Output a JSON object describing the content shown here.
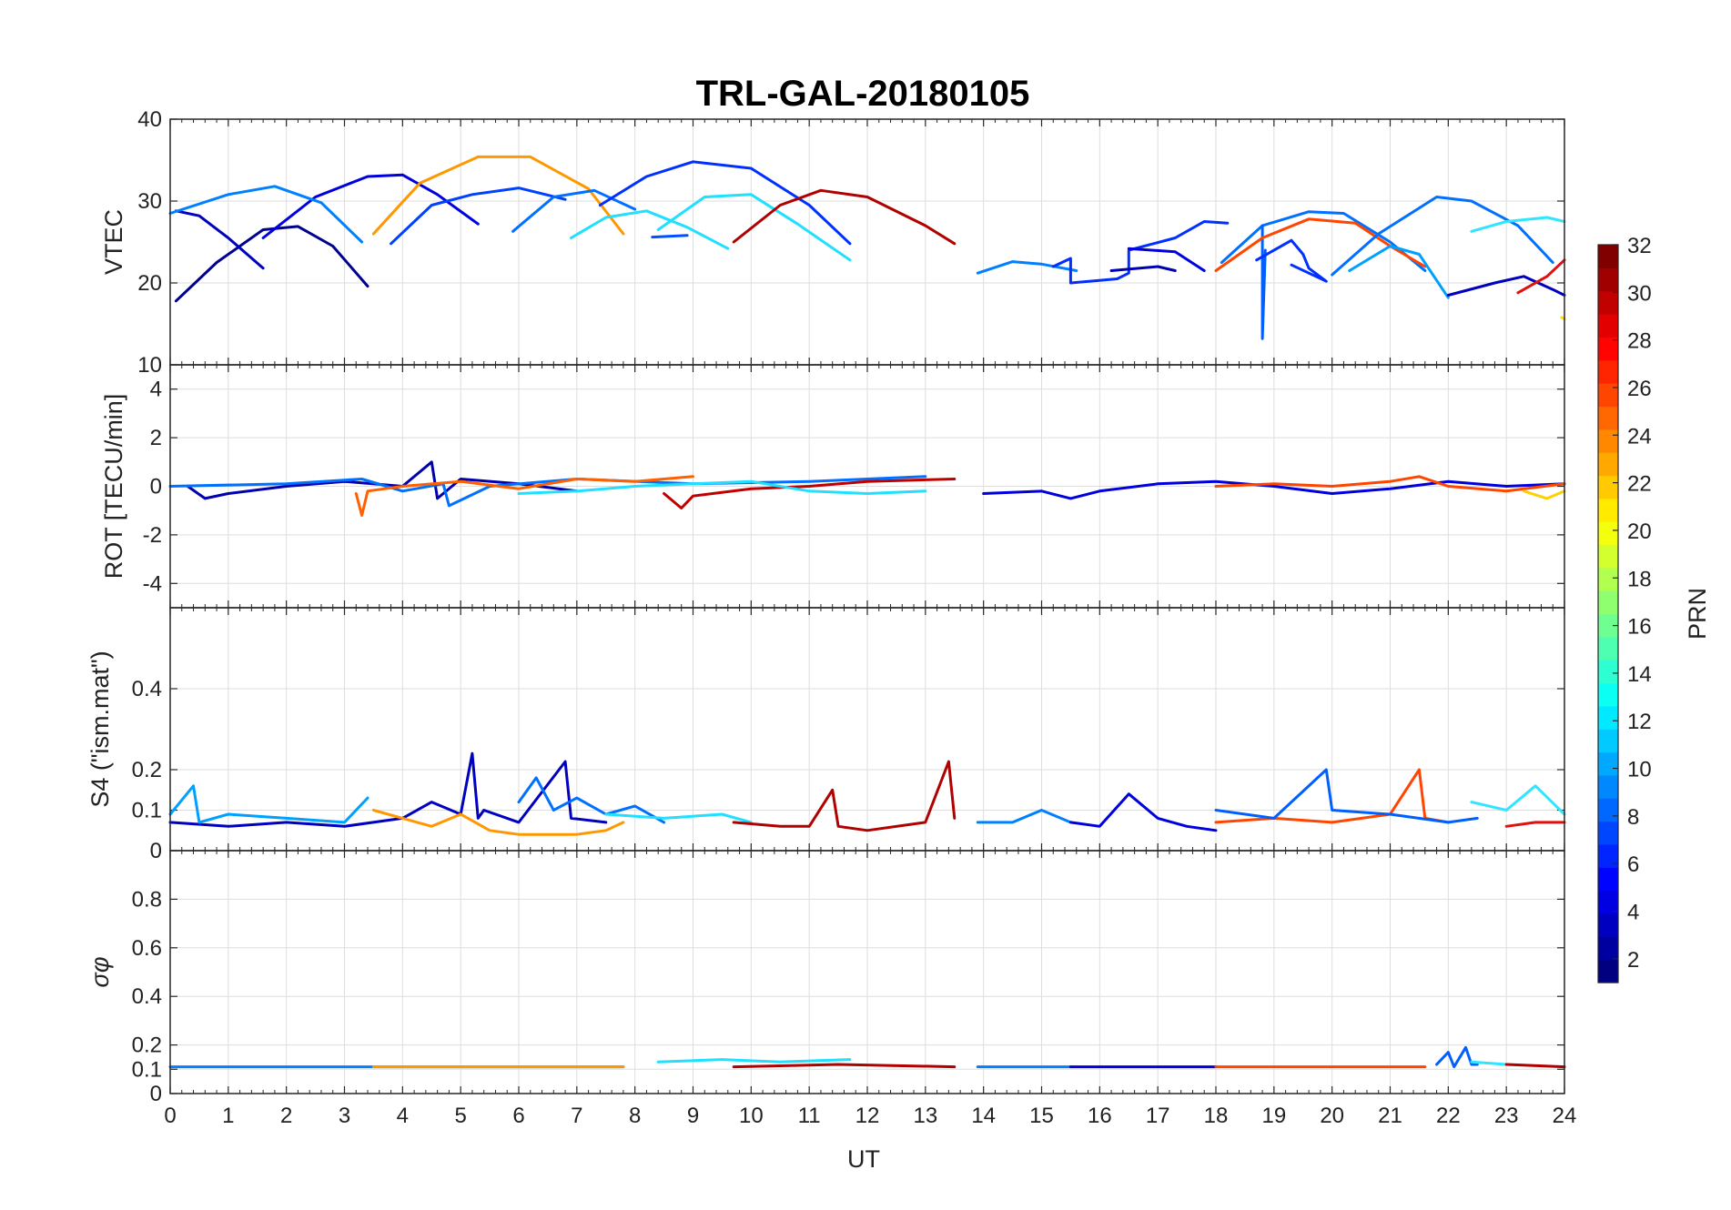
{
  "title": "TRL-GAL-20180105",
  "xlabel": "UT",
  "x_ticks": [
    "0",
    "1",
    "2",
    "3",
    "4",
    "5",
    "6",
    "7",
    "8",
    "9",
    "10",
    "11",
    "12",
    "13",
    "14",
    "15",
    "16",
    "17",
    "18",
    "19",
    "20",
    "21",
    "22",
    "23",
    "24"
  ],
  "colorbar": {
    "label": "PRN",
    "range": [
      1,
      32
    ],
    "ticks": [
      "2",
      "4",
      "6",
      "8",
      "10",
      "12",
      "14",
      "16",
      "18",
      "20",
      "22",
      "24",
      "26",
      "28",
      "30",
      "32"
    ]
  },
  "chart_data": [
    {
      "type": "line",
      "panel": "VTEC",
      "ylabel": "VTEC",
      "xlim": [
        0,
        24
      ],
      "ylim": [
        10,
        40
      ],
      "y_ticks": [
        "10",
        "20",
        "30",
        "40"
      ],
      "series": [
        {
          "prn": 1,
          "color": "#00008f",
          "x": [
            0.1,
            0.8,
            1.6,
            2.2,
            2.8,
            3.4
          ],
          "y": [
            17.8,
            22.5,
            26.5,
            26.9,
            24.5,
            19.6
          ]
        },
        {
          "prn": 3,
          "color": "#0000bf",
          "x": [
            0.1,
            0.5,
            1.0,
            1.6
          ],
          "y": [
            28.8,
            28.2,
            25.5,
            21.8
          ]
        },
        {
          "prn": 4,
          "color": "#0000df",
          "x": [
            1.6,
            2.5,
            3.4,
            4.0,
            4.6,
            5.3
          ],
          "y": [
            25.5,
            30.5,
            33.0,
            33.2,
            30.8,
            27.2
          ]
        },
        {
          "prn": 9,
          "color": "#0080ff",
          "x": [
            0.0,
            1.0,
            1.8,
            2.6,
            3.3
          ],
          "y": [
            28.5,
            30.8,
            31.8,
            29.8,
            25.0
          ]
        },
        {
          "prn": 6,
          "color": "#0040ff",
          "x": [
            3.8,
            4.5,
            5.2,
            6.0,
            6.8
          ],
          "y": [
            24.8,
            29.5,
            30.8,
            31.6,
            30.2
          ]
        },
        {
          "prn": 23,
          "color": "#ff9800",
          "x": [
            3.5,
            4.3,
            5.3,
            6.2,
            7.2,
            7.8
          ],
          "y": [
            26.0,
            32.2,
            35.4,
            35.4,
            31.5,
            26.0
          ]
        },
        {
          "prn": 8,
          "color": "#0070ff",
          "x": [
            5.9,
            6.6,
            7.3,
            8.0
          ],
          "y": [
            26.3,
            30.5,
            31.3,
            29.0
          ]
        },
        {
          "prn": 12,
          "color": "#20dfff",
          "x": [
            6.9,
            7.5,
            8.2,
            8.9,
            9.6
          ],
          "y": [
            25.5,
            28.0,
            28.8,
            26.8,
            24.2
          ]
        },
        {
          "prn": 5,
          "color": "#0030ff",
          "x": [
            7.4,
            8.2,
            9.0,
            10.0,
            11.0,
            11.7
          ],
          "y": [
            29.5,
            33.0,
            34.8,
            34.0,
            29.5,
            24.8
          ]
        },
        {
          "prn": 7,
          "color": "#0050ff",
          "x": [
            8.3,
            8.9
          ],
          "y": [
            25.6,
            25.8
          ]
        },
        {
          "prn": 12,
          "color": "#20dfff",
          "x": [
            8.4,
            9.2,
            10.0,
            10.8,
            11.7
          ],
          "y": [
            26.5,
            30.5,
            30.8,
            27.2,
            22.8
          ]
        },
        {
          "prn": 31,
          "color": "#b00000",
          "x": [
            9.7,
            10.5,
            11.2,
            12.0,
            13.0,
            13.5
          ],
          "y": [
            25.0,
            29.5,
            31.3,
            30.5,
            27.0,
            24.8
          ]
        },
        {
          "prn": 9,
          "color": "#0080ff",
          "x": [
            13.9,
            14.5,
            15.0,
            15.6
          ],
          "y": [
            21.2,
            22.6,
            22.3,
            21.5
          ]
        },
        {
          "prn": 5,
          "color": "#0030ff",
          "x": [
            15.2,
            15.5,
            15.5,
            16.3,
            16.5,
            16.5,
            17.3,
            17.8,
            18.2
          ],
          "y": [
            22.0,
            23.0,
            20.0,
            20.5,
            21.2,
            24.0,
            25.5,
            27.5,
            27.3
          ]
        },
        {
          "prn": 2,
          "color": "#0000af",
          "x": [
            16.2,
            17.0,
            17.3
          ],
          "y": [
            21.5,
            22.0,
            21.5
          ]
        },
        {
          "prn": 4,
          "color": "#0000df",
          "x": [
            16.5,
            17.3,
            17.8
          ],
          "y": [
            24.2,
            23.8,
            21.5
          ]
        },
        {
          "prn": 8,
          "color": "#0070ff",
          "x": [
            18.1,
            18.8,
            19.6,
            20.2,
            21.0,
            21.6
          ],
          "y": [
            22.5,
            27.0,
            28.7,
            28.5,
            25.0,
            21.5
          ]
        },
        {
          "prn": 7,
          "color": "#0060ff",
          "x": [
            18.8,
            18.8,
            18.85
          ],
          "y": [
            27.0,
            13.2,
            24.0
          ]
        },
        {
          "prn": 26,
          "color": "#ff4500",
          "x": [
            18.0,
            18.8,
            19.6,
            20.4,
            21.0,
            21.6
          ],
          "y": [
            21.5,
            25.5,
            27.8,
            27.3,
            24.5,
            22.0
          ]
        },
        {
          "prn": 5,
          "color": "#0030ff",
          "x": [
            18.7,
            19.3,
            19.5,
            19.6,
            19.9,
            19.3
          ],
          "y": [
            22.8,
            25.2,
            23.5,
            21.8,
            20.2,
            22.2
          ]
        },
        {
          "prn": 8,
          "color": "#0070ff",
          "x": [
            20.0,
            20.8,
            21.8,
            22.4,
            23.2,
            23.8
          ],
          "y": [
            21.0,
            26.0,
            30.5,
            30.0,
            27.0,
            22.5
          ]
        },
        {
          "prn": 10,
          "color": "#00a0ff",
          "x": [
            20.3,
            21.0,
            21.5,
            22.0
          ],
          "y": [
            21.5,
            24.5,
            23.5,
            18.2
          ]
        },
        {
          "prn": 3,
          "color": "#0000bf",
          "x": [
            22.0,
            22.8,
            23.3,
            23.8,
            24.0
          ],
          "y": [
            18.5,
            20.0,
            20.8,
            19.2,
            18.5
          ]
        },
        {
          "prn": 12,
          "color": "#30e5ff",
          "x": [
            22.4,
            23.0,
            23.7,
            24.0
          ],
          "y": [
            26.3,
            27.5,
            28.0,
            27.5
          ]
        },
        {
          "prn": 30,
          "color": "#e01010",
          "x": [
            23.2,
            23.7,
            24.0
          ],
          "y": [
            18.8,
            20.8,
            22.8
          ]
        },
        {
          "prn": 20,
          "color": "#ffe000",
          "x": [
            23.95,
            24.0
          ],
          "y": [
            15.8,
            15.6
          ]
        }
      ]
    },
    {
      "type": "line",
      "panel": "ROT",
      "ylabel": "ROT [TECU/min]",
      "xlim": [
        0,
        24
      ],
      "ylim": [
        -5,
        5
      ],
      "y_ticks": [
        "-4",
        "-2",
        "0",
        "2",
        "4"
      ],
      "series": [
        {
          "prn": 2,
          "color": "#0000af",
          "x": [
            0.3,
            0.6,
            1.0,
            2.0,
            3.0,
            4.0,
            4.5,
            4.6,
            5.0,
            6.0,
            7.0
          ],
          "y": [
            0.0,
            -0.5,
            -0.3,
            0.0,
            0.2,
            0.0,
            1.0,
            -0.5,
            0.3,
            0.1,
            -0.2
          ]
        },
        {
          "prn": 8,
          "color": "#0070ff",
          "x": [
            0.0,
            2.0,
            3.3,
            4.0,
            4.7,
            4.8,
            5.5,
            7.0,
            9.0,
            11.0,
            12.0,
            13.0
          ],
          "y": [
            0.0,
            0.1,
            0.3,
            -0.2,
            0.1,
            -0.8,
            0.0,
            0.3,
            0.1,
            0.2,
            0.3,
            0.4
          ]
        },
        {
          "prn": 25,
          "color": "#ff6000",
          "x": [
            3.2,
            3.3,
            3.4,
            4.0,
            5.0,
            6.0,
            7.0,
            8.0,
            9.0
          ],
          "y": [
            -0.3,
            -1.2,
            -0.2,
            0.0,
            0.2,
            -0.1,
            0.3,
            0.2,
            0.4
          ]
        },
        {
          "prn": 30,
          "color": "#c00000",
          "x": [
            8.5,
            8.8,
            9.0,
            10.0,
            11.0,
            12.0,
            13.5
          ],
          "y": [
            -0.3,
            -0.9,
            -0.4,
            -0.1,
            0.0,
            0.2,
            0.3
          ]
        },
        {
          "prn": 12,
          "color": "#20dfff",
          "x": [
            6.0,
            7.0,
            8.0,
            9.0,
            10.0,
            11.0,
            12.0,
            13.0
          ],
          "y": [
            -0.3,
            -0.2,
            0.0,
            0.1,
            0.2,
            -0.2,
            -0.3,
            -0.2
          ]
        },
        {
          "prn": 4,
          "color": "#0000df",
          "x": [
            14.0,
            15.0,
            15.5,
            16.0,
            17.0,
            18.0,
            19.0,
            20.0,
            21.0,
            22.0,
            23.0,
            24.0
          ],
          "y": [
            -0.3,
            -0.2,
            -0.5,
            -0.2,
            0.1,
            0.2,
            0.0,
            -0.3,
            -0.1,
            0.2,
            0.0,
            0.1
          ]
        },
        {
          "prn": 26,
          "color": "#ff4500",
          "x": [
            18.0,
            19.0,
            20.0,
            21.0,
            21.5,
            22.0,
            23.0,
            24.0
          ],
          "y": [
            0.0,
            0.1,
            0.0,
            0.2,
            0.4,
            0.0,
            -0.2,
            0.1
          ]
        },
        {
          "prn": 21,
          "color": "#ffd000",
          "x": [
            23.3,
            23.7,
            24.0
          ],
          "y": [
            -0.2,
            -0.5,
            -0.2
          ]
        }
      ]
    },
    {
      "type": "line",
      "panel": "S4",
      "ylabel": "S4 (\"ism.mat\")",
      "xlim": [
        0,
        24
      ],
      "ylim": [
        0,
        0.6
      ],
      "y_ticks": [
        "0",
        "0.1",
        "0.2",
        "0.4"
      ],
      "series": [
        {
          "prn": 3,
          "color": "#0000bf",
          "x": [
            0.0,
            1.0,
            2.0,
            3.0,
            4.0,
            4.5,
            5.0,
            5.2,
            5.3,
            5.4,
            6.0,
            6.8,
            6.9,
            7.5
          ],
          "y": [
            0.07,
            0.06,
            0.07,
            0.06,
            0.08,
            0.12,
            0.09,
            0.24,
            0.08,
            0.1,
            0.07,
            0.22,
            0.08,
            0.07
          ]
        },
        {
          "prn": 10,
          "color": "#00a0ff",
          "x": [
            0.0,
            0.4,
            0.5,
            1.0,
            2.0,
            3.0,
            3.4
          ],
          "y": [
            0.09,
            0.16,
            0.07,
            0.09,
            0.08,
            0.07,
            0.13
          ]
        },
        {
          "prn": 23,
          "color": "#ff9800",
          "x": [
            3.5,
            4.0,
            4.5,
            5.0,
            5.5,
            6.0,
            6.5,
            7.0,
            7.5,
            7.8
          ],
          "y": [
            0.1,
            0.08,
            0.06,
            0.09,
            0.05,
            0.04,
            0.04,
            0.04,
            0.05,
            0.07
          ]
        },
        {
          "prn": 8,
          "color": "#0070ff",
          "x": [
            6.0,
            6.3,
            6.6,
            7.0,
            7.5,
            8.0,
            8.5
          ],
          "y": [
            0.12,
            0.18,
            0.1,
            0.13,
            0.09,
            0.11,
            0.07
          ]
        },
        {
          "prn": 12,
          "color": "#20dfff",
          "x": [
            7.5,
            8.5,
            9.5,
            10.0
          ],
          "y": [
            0.09,
            0.08,
            0.09,
            0.07
          ]
        },
        {
          "prn": 31,
          "color": "#b00000",
          "x": [
            9.7,
            10.5,
            11.0,
            11.4,
            11.5,
            12.0,
            13.0,
            13.4,
            13.5
          ],
          "y": [
            0.07,
            0.06,
            0.06,
            0.15,
            0.06,
            0.05,
            0.07,
            0.22,
            0.08
          ]
        },
        {
          "prn": 9,
          "color": "#0080ff",
          "x": [
            13.9,
            14.5,
            15.0,
            15.5
          ],
          "y": [
            0.07,
            0.07,
            0.1,
            0.07
          ]
        },
        {
          "prn": 4,
          "color": "#0000df",
          "x": [
            15.5,
            16.0,
            16.5,
            17.0,
            17.5,
            18.0
          ],
          "y": [
            0.07,
            0.06,
            0.14,
            0.08,
            0.06,
            0.05
          ]
        },
        {
          "prn": 26,
          "color": "#ff4500",
          "x": [
            18.0,
            19.0,
            20.0,
            21.0,
            21.5,
            21.6,
            22.0
          ],
          "y": [
            0.07,
            0.08,
            0.07,
            0.09,
            0.2,
            0.08,
            0.07
          ]
        },
        {
          "prn": 7,
          "color": "#0060ff",
          "x": [
            18.0,
            19.0,
            19.9,
            20.0,
            21.0,
            22.0,
            22.5
          ],
          "y": [
            0.1,
            0.08,
            0.2,
            0.1,
            0.09,
            0.07,
            0.08
          ]
        },
        {
          "prn": 12,
          "color": "#30e5ff",
          "x": [
            22.4,
            23.0,
            23.5,
            24.0
          ],
          "y": [
            0.12,
            0.1,
            0.16,
            0.09
          ]
        },
        {
          "prn": 30,
          "color": "#e01010",
          "x": [
            23.0,
            23.5,
            24.0
          ],
          "y": [
            0.06,
            0.07,
            0.07
          ]
        }
      ]
    },
    {
      "type": "line",
      "panel": "sigma_phi",
      "ylabel": "σφ",
      "xlim": [
        0,
        24
      ],
      "ylim": [
        0,
        1
      ],
      "y_ticks": [
        "0",
        "0.1",
        "0.2",
        "0.4",
        "0.6",
        "0.8"
      ],
      "series": [
        {
          "prn": 9,
          "color": "#0080ff",
          "x": [
            0.0,
            3.5,
            7.8
          ],
          "y": [
            0.11,
            0.11,
            0.11
          ]
        },
        {
          "prn": 23,
          "color": "#ff9800",
          "x": [
            3.5,
            7.8
          ],
          "y": [
            0.11,
            0.11
          ]
        },
        {
          "prn": 12,
          "color": "#20dfff",
          "x": [
            8.4,
            9.5,
            10.5,
            11.7
          ],
          "y": [
            0.13,
            0.14,
            0.13,
            0.14
          ]
        },
        {
          "prn": 31,
          "color": "#b00000",
          "x": [
            9.7,
            11.5,
            13.5
          ],
          "y": [
            0.11,
            0.12,
            0.11
          ]
        },
        {
          "prn": 9,
          "color": "#0080ff",
          "x": [
            13.9,
            15.5
          ],
          "y": [
            0.11,
            0.11
          ]
        },
        {
          "prn": 4,
          "color": "#0000df",
          "x": [
            15.5,
            18.0
          ],
          "y": [
            0.11,
            0.11
          ]
        },
        {
          "prn": 26,
          "color": "#ff4500",
          "x": [
            18.0,
            21.6
          ],
          "y": [
            0.11,
            0.11
          ]
        },
        {
          "prn": 7,
          "color": "#0060ff",
          "x": [
            21.8,
            22.0,
            22.1,
            22.3,
            22.4,
            22.5
          ],
          "y": [
            0.12,
            0.17,
            0.11,
            0.19,
            0.12,
            0.12
          ]
        },
        {
          "prn": 12,
          "color": "#30e5ff",
          "x": [
            22.4,
            23.0
          ],
          "y": [
            0.13,
            0.12
          ]
        },
        {
          "prn": 30,
          "color": "#b00000",
          "x": [
            23.0,
            24.0
          ],
          "y": [
            0.12,
            0.11
          ]
        }
      ]
    }
  ]
}
